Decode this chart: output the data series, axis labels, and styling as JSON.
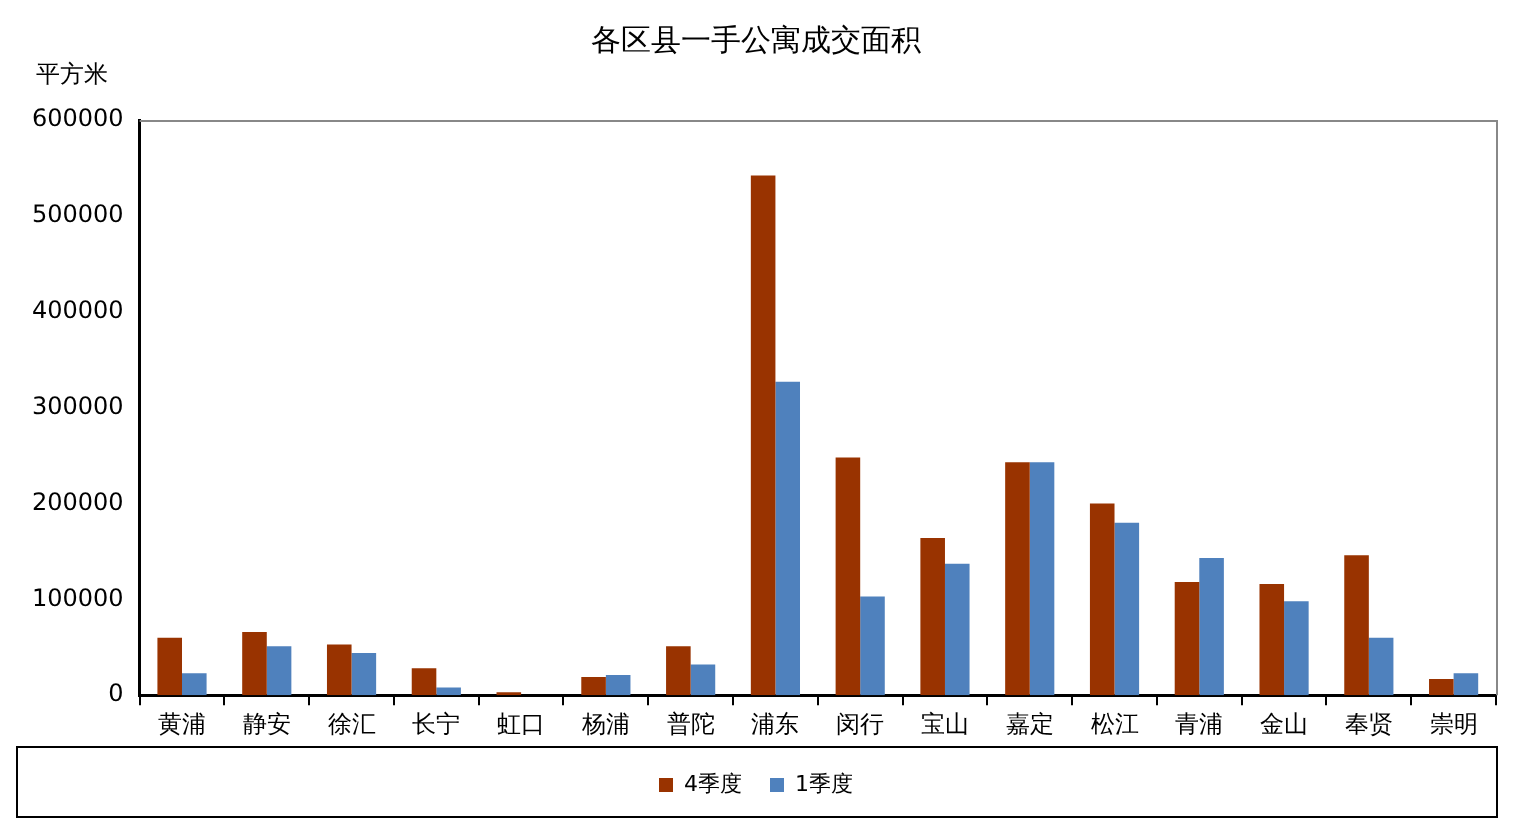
{
  "chart_data": {
    "type": "bar",
    "title": "各区县一手公寓成交面积",
    "ylabel": "平方米",
    "categories": [
      "黄浦",
      "静安",
      "徐汇",
      "长宁",
      "虹口",
      "杨浦",
      "普陀",
      "浦东",
      "闵行",
      "宝山",
      "嘉定",
      "松江",
      "青浦",
      "金山",
      "奉贤",
      "崇明"
    ],
    "series": [
      {
        "name": "4季度",
        "color": "#993300",
        "values": [
          60000,
          66000,
          53000,
          28000,
          3000,
          19000,
          51000,
          542000,
          248000,
          164000,
          243000,
          200000,
          118000,
          116000,
          146000,
          17000
        ]
      },
      {
        "name": "1季度",
        "color": "#4f81bd",
        "values": [
          23000,
          51000,
          44000,
          8000,
          0,
          21000,
          32000,
          327000,
          103000,
          137000,
          243000,
          180000,
          143000,
          98000,
          60000,
          23000
        ]
      }
    ],
    "ylim": [
      0,
      600000
    ],
    "yticks": [
      0,
      100000,
      200000,
      300000,
      400000,
      500000,
      600000
    ],
    "grid": false,
    "legend": "bottom"
  }
}
